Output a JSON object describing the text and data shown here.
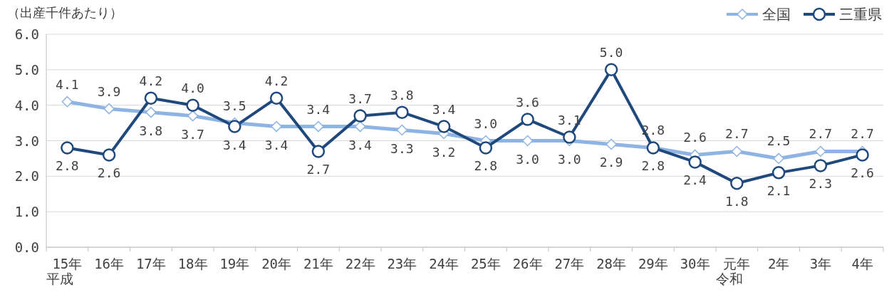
{
  "chart_data": {
    "type": "line",
    "ylabel": "（出産千件あたり）",
    "categories": [
      "15年平成",
      "16年",
      "17年",
      "18年",
      "19年",
      "20年",
      "21年",
      "22年",
      "23年",
      "24年",
      "25年",
      "26年",
      "27年",
      "28年",
      "29年",
      "30年",
      "元年令和",
      "2年",
      "3年",
      "4年"
    ],
    "series": [
      {
        "name": "全国",
        "color": "#8eb4e3",
        "marker": "diamond",
        "values": [
          4.1,
          3.9,
          3.8,
          3.7,
          3.5,
          3.4,
          3.4,
          3.4,
          3.3,
          3.2,
          3.0,
          3.0,
          3.0,
          2.9,
          2.8,
          2.6,
          2.7,
          2.5,
          2.7,
          2.7
        ],
        "value_labels": [
          "4.1",
          "3.9",
          "3.8",
          "3.7",
          "3.5",
          "3.4",
          "3.4",
          "3.4",
          "3.3",
          "3.2",
          "3.0",
          "3.0",
          "3.0",
          "2.9",
          "2.8",
          "2.6",
          "2.7",
          "2.5",
          "2.7",
          "2.7"
        ]
      },
      {
        "name": "三重県",
        "color": "#1f497d",
        "marker": "circle",
        "values": [
          2.8,
          2.6,
          4.2,
          4.0,
          3.4,
          4.2,
          2.7,
          3.7,
          3.8,
          3.4,
          2.8,
          3.6,
          3.1,
          5.0,
          2.8,
          2.4,
          1.8,
          2.1,
          2.3,
          2.6
        ],
        "value_labels": [
          "2.8",
          "2.6",
          "4.2",
          "4.0",
          "3.4",
          "4.2",
          "2.7",
          "3.7",
          "3.8",
          "3.4",
          "2.8",
          "3.6",
          "3.1",
          "5.0",
          "2.8",
          "2.4",
          "1.8",
          "2.1",
          "2.3",
          "2.6"
        ]
      }
    ],
    "ylim": [
      0,
      6
    ],
    "yticks": [
      {
        "value": 0,
        "label": "0.0"
      },
      {
        "value": 1,
        "label": "1.0"
      },
      {
        "value": 2,
        "label": "2.0"
      },
      {
        "value": 3,
        "label": "3.0"
      },
      {
        "value": 4,
        "label": "4.0"
      },
      {
        "value": 5,
        "label": "5.0"
      },
      {
        "value": 6,
        "label": "6.0"
      }
    ],
    "grid": "y",
    "legend": "top right",
    "data_labels": true,
    "line_style": "solid"
  }
}
